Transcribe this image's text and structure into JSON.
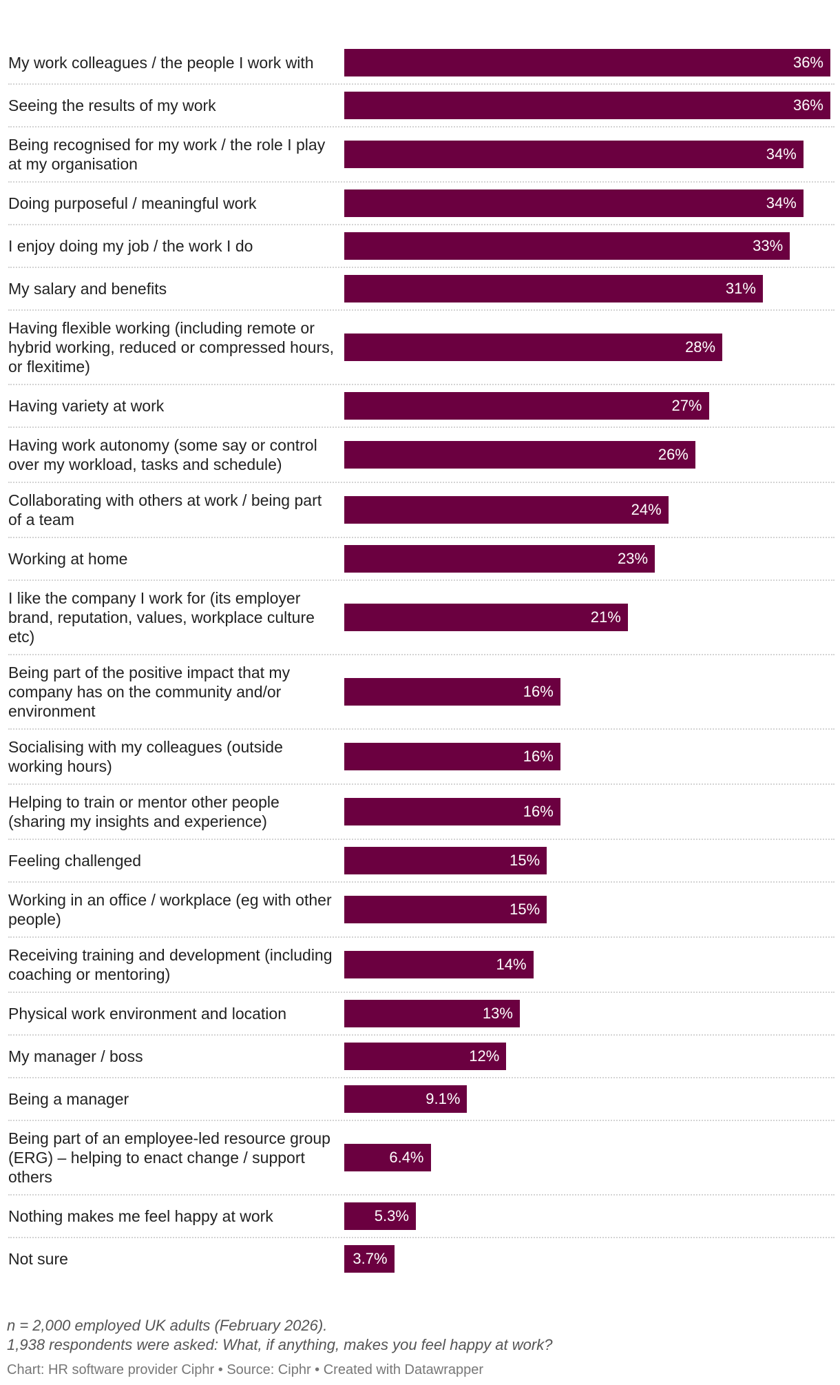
{
  "chart_data": {
    "type": "bar",
    "orientation": "horizontal",
    "categories": [
      "My work colleagues / the people I work with",
      "Seeing the results of my work",
      "Being recognised for my work / the role I play at my organisation",
      "Doing purposeful / meaningful work",
      "I enjoy doing my job / the work I do",
      "My salary and benefits",
      "Having flexible working (including remote or hybrid working, reduced or compressed hours, or flexitime)",
      "Having variety at work",
      "Having work autonomy (some say or control over my workload, tasks and schedule)",
      "Collaborating with others at work / being part of a team",
      "Working at home",
      "I like the company I work for (its employer brand, reputation, values, workplace culture etc)",
      "Being part of the positive impact that my company has on the community and/or environment",
      "Socialising with my colleagues (outside working hours)",
      "Helping to train or mentor other people (sharing my insights and experience)",
      "Feeling challenged",
      "Working in an office / workplace (eg with other people)",
      "Receiving training and development (including coaching or mentoring)",
      "Physical work environment and location",
      "My manager / boss",
      "Being a manager",
      "Being part of an employee-led resource group (ERG) – helping to enact change / support others",
      "Nothing makes me feel happy at work",
      "Not sure"
    ],
    "values": [
      36,
      36,
      34,
      34,
      33,
      31,
      28,
      27,
      26,
      24,
      23,
      21,
      16,
      16,
      16,
      15,
      15,
      14,
      13,
      12,
      9.1,
      6.4,
      5.3,
      3.7
    ],
    "value_labels": [
      "36%",
      "36%",
      "34%",
      "34%",
      "33%",
      "31%",
      "28%",
      "27%",
      "26%",
      "24%",
      "23%",
      "21%",
      "16%",
      "16%",
      "16%",
      "15%",
      "15%",
      "14%",
      "13%",
      "12%",
      "9.1%",
      "6.4%",
      "5.3%",
      "3.7%"
    ],
    "xlim": [
      0,
      36
    ],
    "bar_color": "#6b0040",
    "value_label_color": "#ffffff",
    "grid": false
  },
  "notes": {
    "sample": "n = 2,000 employed UK adults (February 2026).",
    "question": "1,938 respondents were asked: What, if anything, makes you feel happy at work?",
    "credit": "Chart: HR software provider Ciphr • Source: Ciphr • Created with Datawrapper"
  }
}
